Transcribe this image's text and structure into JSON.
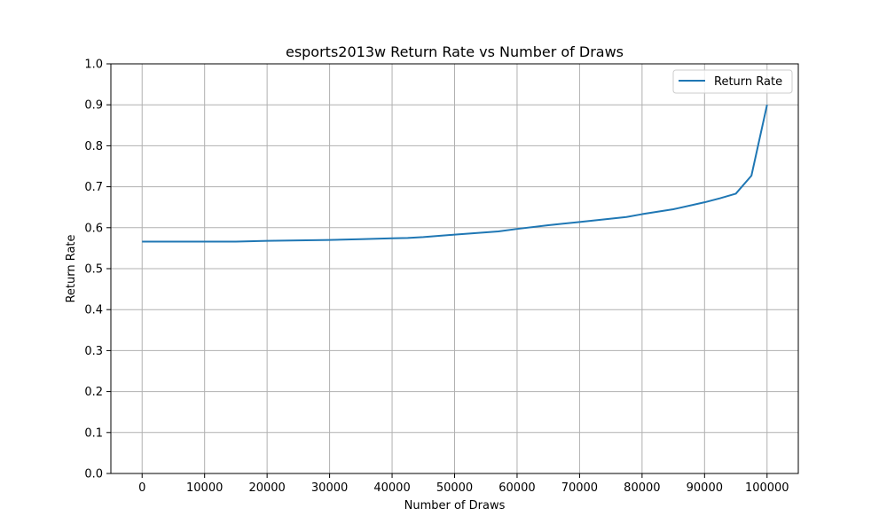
{
  "chart_data": {
    "type": "line",
    "title": "esports2013w Return Rate vs Number of Draws",
    "xlabel": "Number of Draws",
    "ylabel": "Return Rate",
    "xlim": [
      -5000,
      105000
    ],
    "ylim": [
      0,
      1.0
    ],
    "xticks": [
      0,
      10000,
      20000,
      30000,
      40000,
      50000,
      60000,
      70000,
      80000,
      90000,
      100000
    ],
    "yticks": [
      0.0,
      0.1,
      0.2,
      0.3,
      0.4,
      0.5,
      0.6,
      0.7,
      0.8,
      0.9,
      1.0
    ],
    "xtick_labels": [
      "0",
      "10000",
      "20000",
      "30000",
      "40000",
      "50000",
      "60000",
      "70000",
      "80000",
      "90000",
      "100000"
    ],
    "ytick_labels": [
      "0.0",
      "0.1",
      "0.2",
      "0.3",
      "0.4",
      "0.5",
      "0.6",
      "0.7",
      "0.8",
      "0.9",
      "1.0"
    ],
    "grid": true,
    "legend_position": "top-right",
    "series": [
      {
        "name": "Return Rate",
        "color": "#1f77b4",
        "x": [
          0,
          5000,
          10000,
          15000,
          20000,
          25000,
          30000,
          35000,
          40000,
          42500,
          45000,
          50000,
          57000,
          60000,
          65000,
          70000,
          75000,
          77500,
          80000,
          85000,
          90000,
          92500,
          95000,
          97500,
          100000
        ],
        "y": [
          0.566,
          0.566,
          0.566,
          0.566,
          0.568,
          0.569,
          0.57,
          0.572,
          0.574,
          0.575,
          0.577,
          0.583,
          0.591,
          0.597,
          0.606,
          0.614,
          0.622,
          0.626,
          0.633,
          0.645,
          0.662,
          0.672,
          0.683,
          0.727,
          0.9
        ]
      }
    ]
  }
}
